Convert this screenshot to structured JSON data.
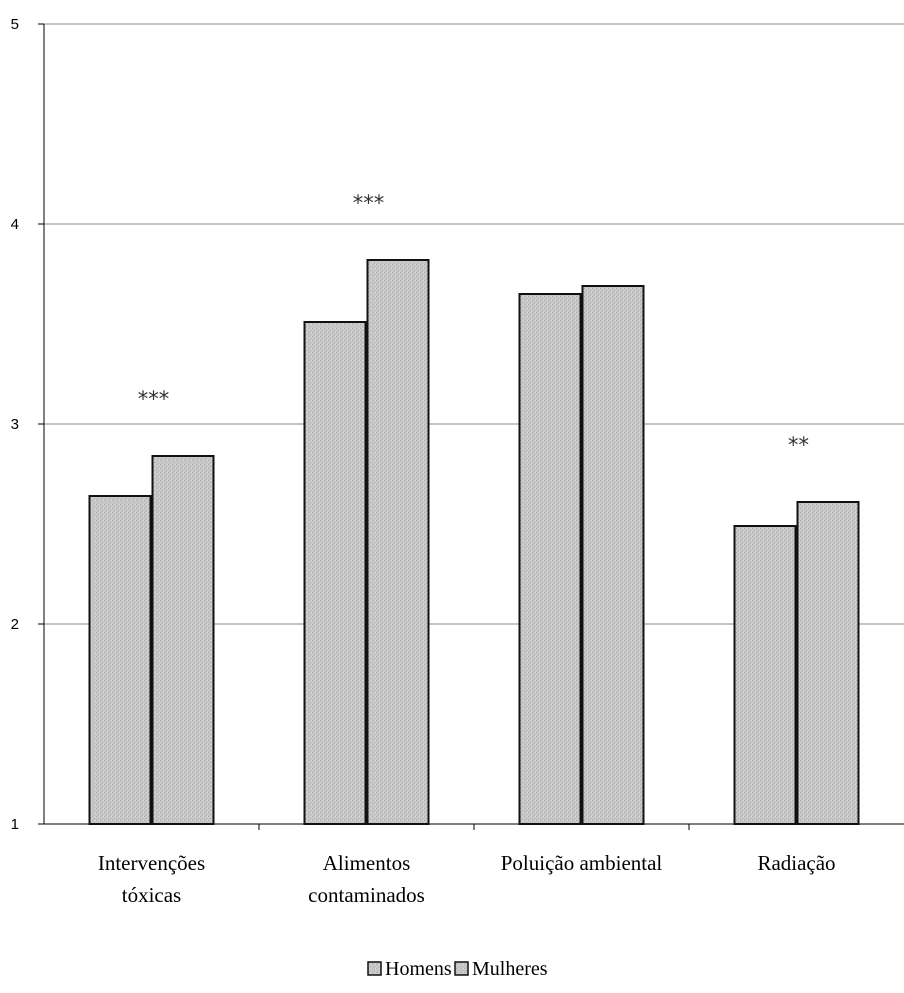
{
  "chart_data": {
    "type": "bar",
    "categories": [
      [
        "Intervenções",
        "tóxicas"
      ],
      [
        "Alimentos",
        "contaminados"
      ],
      [
        "Poluição ambiental"
      ],
      [
        "Radiação"
      ]
    ],
    "series": [
      {
        "name": "Homens",
        "values": [
          2.64,
          3.51,
          3.65,
          2.49
        ]
      },
      {
        "name": "Mulheres",
        "values": [
          2.84,
          3.82,
          3.69,
          2.61
        ]
      }
    ],
    "annotations": [
      "***",
      "***",
      "",
      "**"
    ],
    "ylim": [
      1,
      5
    ],
    "yticks": [
      1,
      2,
      3,
      4,
      5
    ],
    "title": "",
    "xlabel": "",
    "ylabel": "",
    "grid": true,
    "legend_position": "bottom",
    "colors": {
      "bar_fill": "#c8c8c8",
      "bar_stroke": "#111111",
      "grid": "#8a8a8a",
      "axis": "#000000"
    }
  }
}
